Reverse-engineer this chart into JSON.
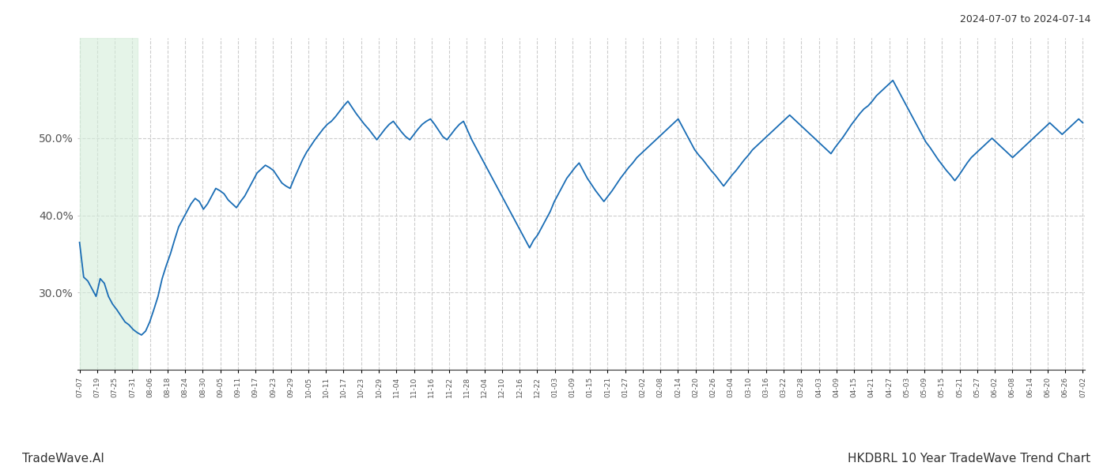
{
  "title_right": "2024-07-07 to 2024-07-14",
  "title_bottom_left": "TradeWave.AI",
  "title_bottom_right": "HKDBRL 10 Year TradeWave Trend Chart",
  "line_color": "#1a6db5",
  "line_width": 1.3,
  "shade_color": "#d4edda",
  "shade_alpha": 0.6,
  "background_color": "#ffffff",
  "grid_color": "#cccccc",
  "grid_style": "--",
  "ylabel_color": "#555555",
  "yticks": [
    0.3,
    0.4,
    0.5
  ],
  "ytick_labels": [
    "30.0%",
    "40.0%",
    "50.0%"
  ],
  "ylim": [
    0.2,
    0.63
  ],
  "x_labels": [
    "07-07",
    "07-19",
    "07-25",
    "07-31",
    "08-06",
    "08-18",
    "08-24",
    "08-30",
    "09-05",
    "09-11",
    "09-17",
    "09-23",
    "09-29",
    "10-05",
    "10-11",
    "10-17",
    "10-23",
    "10-29",
    "11-04",
    "11-10",
    "11-16",
    "11-22",
    "11-28",
    "12-04",
    "12-10",
    "12-16",
    "12-22",
    "01-03",
    "01-09",
    "01-15",
    "01-21",
    "01-27",
    "02-02",
    "02-08",
    "02-14",
    "02-20",
    "02-26",
    "03-04",
    "03-10",
    "03-16",
    "03-22",
    "03-28",
    "04-03",
    "04-09",
    "04-15",
    "04-21",
    "04-27",
    "05-03",
    "05-09",
    "05-15",
    "05-21",
    "05-27",
    "06-02",
    "06-08",
    "06-14",
    "06-20",
    "06-26",
    "07-02"
  ],
  "values": [
    0.365,
    0.32,
    0.315,
    0.305,
    0.295,
    0.318,
    0.312,
    0.295,
    0.285,
    0.278,
    0.27,
    0.262,
    0.258,
    0.252,
    0.248,
    0.245,
    0.25,
    0.262,
    0.278,
    0.295,
    0.318,
    0.335,
    0.35,
    0.368,
    0.385,
    0.395,
    0.405,
    0.415,
    0.422,
    0.418,
    0.408,
    0.415,
    0.425,
    0.435,
    0.432,
    0.428,
    0.42,
    0.415,
    0.41,
    0.418,
    0.425,
    0.435,
    0.445,
    0.455,
    0.46,
    0.465,
    0.462,
    0.458,
    0.45,
    0.442,
    0.438,
    0.435,
    0.448,
    0.46,
    0.472,
    0.482,
    0.49,
    0.498,
    0.505,
    0.512,
    0.518,
    0.522,
    0.528,
    0.535,
    0.542,
    0.548,
    0.54,
    0.532,
    0.525,
    0.518,
    0.512,
    0.505,
    0.498,
    0.505,
    0.512,
    0.518,
    0.522,
    0.515,
    0.508,
    0.502,
    0.498,
    0.505,
    0.512,
    0.518,
    0.522,
    0.525,
    0.518,
    0.51,
    0.502,
    0.498,
    0.505,
    0.512,
    0.518,
    0.522,
    0.51,
    0.498,
    0.488,
    0.478,
    0.468,
    0.458,
    0.448,
    0.438,
    0.428,
    0.418,
    0.408,
    0.398,
    0.388,
    0.378,
    0.368,
    0.358,
    0.368,
    0.375,
    0.385,
    0.395,
    0.405,
    0.418,
    0.428,
    0.438,
    0.448,
    0.455,
    0.462,
    0.468,
    0.458,
    0.448,
    0.44,
    0.432,
    0.425,
    0.418,
    0.425,
    0.432,
    0.44,
    0.448,
    0.455,
    0.462,
    0.468,
    0.475,
    0.48,
    0.485,
    0.49,
    0.495,
    0.5,
    0.505,
    0.51,
    0.515,
    0.52,
    0.525,
    0.515,
    0.505,
    0.495,
    0.485,
    0.478,
    0.472,
    0.465,
    0.458,
    0.452,
    0.445,
    0.438,
    0.445,
    0.452,
    0.458,
    0.465,
    0.472,
    0.478,
    0.485,
    0.49,
    0.495,
    0.5,
    0.505,
    0.51,
    0.515,
    0.52,
    0.525,
    0.53,
    0.525,
    0.52,
    0.515,
    0.51,
    0.505,
    0.5,
    0.495,
    0.49,
    0.485,
    0.48,
    0.488,
    0.495,
    0.502,
    0.51,
    0.518,
    0.525,
    0.532,
    0.538,
    0.542,
    0.548,
    0.555,
    0.56,
    0.565,
    0.57,
    0.575,
    0.565,
    0.555,
    0.545,
    0.535,
    0.525,
    0.515,
    0.505,
    0.495,
    0.488,
    0.48,
    0.472,
    0.465,
    0.458,
    0.452,
    0.445,
    0.452,
    0.46,
    0.468,
    0.475,
    0.48,
    0.485,
    0.49,
    0.495,
    0.5,
    0.495,
    0.49,
    0.485,
    0.48,
    0.475,
    0.48,
    0.485,
    0.49,
    0.495,
    0.5,
    0.505,
    0.51,
    0.515,
    0.52,
    0.515,
    0.51,
    0.505,
    0.51,
    0.515,
    0.52,
    0.525,
    0.52
  ],
  "shade_xstart": 0,
  "shade_xend": 14
}
